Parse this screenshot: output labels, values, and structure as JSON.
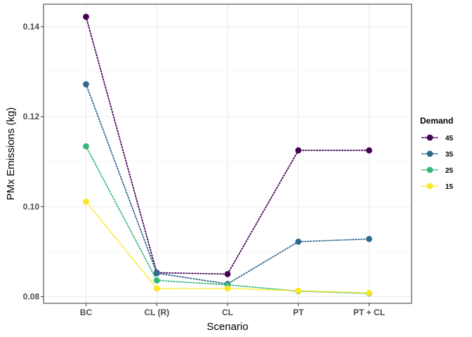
{
  "chart_data": {
    "type": "line",
    "xlabel": "Scenario",
    "ylabel": "PMx Emissions (kg)",
    "categories": [
      "BC",
      "CL (R)",
      "CL",
      "PT",
      "PT + CL"
    ],
    "ylim": [
      0.0785,
      0.145
    ],
    "yticks": [
      0.08,
      0.1,
      0.12,
      0.14
    ],
    "ytick_labels": [
      "0.08",
      "0.10",
      "0.12",
      "0.14"
    ],
    "grid": true,
    "legend": {
      "title": "Demand",
      "placement": "right"
    },
    "series": [
      {
        "name": "45",
        "color": "#440154",
        "values": [
          0.1422,
          0.0853,
          0.085,
          0.1125,
          0.1125
        ]
      },
      {
        "name": "35",
        "color": "#31688E",
        "values": [
          0.1272,
          0.0852,
          0.0828,
          0.0922,
          0.0928
        ]
      },
      {
        "name": "25",
        "color": "#35B779",
        "values": [
          0.1134,
          0.0836,
          0.0826,
          0.0812,
          0.0807
        ]
      },
      {
        "name": "15",
        "color": "#FDE725",
        "values": [
          0.1011,
          0.0818,
          0.0818,
          0.0813,
          0.0808
        ]
      }
    ]
  }
}
